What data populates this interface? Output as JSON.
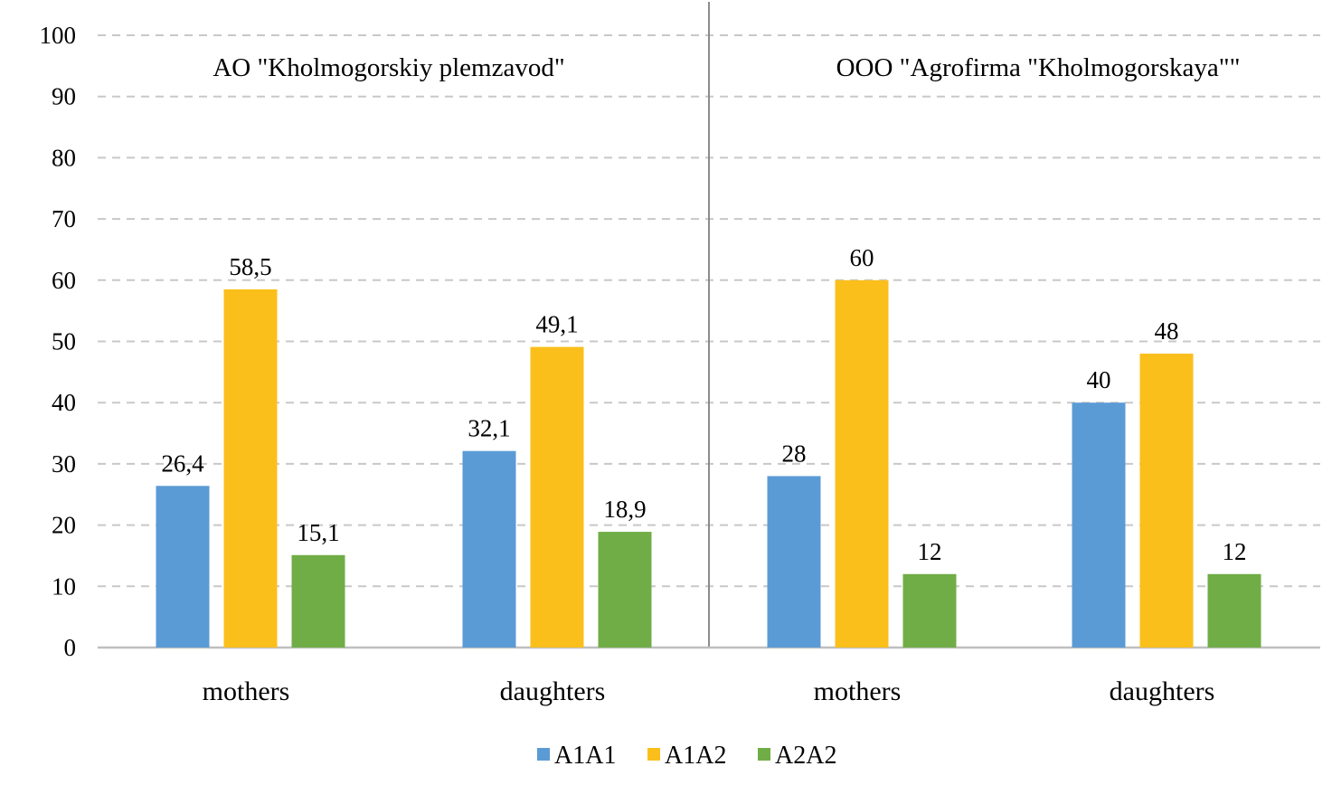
{
  "chart_data": {
    "type": "bar",
    "title": "",
    "xlabel": "",
    "ylabel": "",
    "ylim": [
      0,
      100
    ],
    "yticks": [
      0,
      10,
      20,
      30,
      40,
      50,
      60,
      70,
      80,
      90,
      100
    ],
    "grid": true,
    "legend_position": "bottom",
    "panels": [
      {
        "title": "AO \"Kholmogorskiy plemzavod\"",
        "categories": [
          "mothers",
          "daughters"
        ],
        "series": [
          {
            "name": "A1A1",
            "values": [
              26.4,
              32.1
            ],
            "labels": [
              "26,4",
              "32,1"
            ]
          },
          {
            "name": "A1A2",
            "values": [
              58.5,
              49.1
            ],
            "labels": [
              "58,5",
              "49,1"
            ]
          },
          {
            "name": "A2A2",
            "values": [
              15.1,
              18.9
            ],
            "labels": [
              "15,1",
              "18,9"
            ]
          }
        ]
      },
      {
        "title": "OOO \"Agrofirma \"Kholmogorskaya\"\"",
        "categories": [
          "mothers",
          "daughters"
        ],
        "series": [
          {
            "name": "A1A1",
            "values": [
              28,
              40
            ],
            "labels": [
              "28",
              "40"
            ]
          },
          {
            "name": "A1A2",
            "values": [
              60,
              48
            ],
            "labels": [
              "60",
              "48"
            ]
          },
          {
            "name": "A2A2",
            "values": [
              12,
              12
            ],
            "labels": [
              "12",
              "12"
            ]
          }
        ]
      }
    ],
    "legend": [
      {
        "name": "A1A1",
        "color": "#5b9bd5"
      },
      {
        "name": "A1A2",
        "color": "#fbbf1c"
      },
      {
        "name": "A2A2",
        "color": "#70ad47"
      }
    ]
  }
}
